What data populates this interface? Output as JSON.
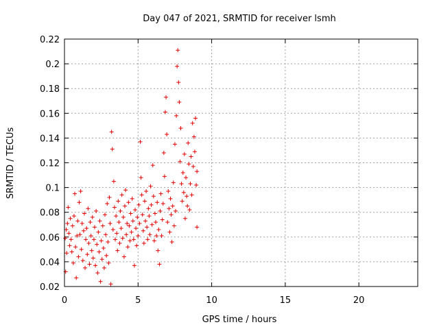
{
  "chart_data": {
    "type": "scatter",
    "title": "Day 047 of 2021, SRMTID for receiver lsmh",
    "xlabel": "GPS time / hours",
    "ylabel": "SRMTID / TECUs",
    "xlim": [
      0,
      24
    ],
    "ylim": [
      0.02,
      0.22
    ],
    "xticks": [
      0,
      5,
      10,
      15,
      20
    ],
    "xtick_labels": [
      "0",
      "5",
      "10",
      "15",
      "20"
    ],
    "yticks": [
      0.02,
      0.04,
      0.06,
      0.08,
      0.1,
      0.12,
      0.14,
      0.16,
      0.18,
      0.2,
      0.22
    ],
    "ytick_labels": [
      "0.02",
      "0.04",
      "0.06",
      "0.08",
      "0.1",
      "0.12",
      "0.14",
      "0.16",
      "0.18",
      "0.2",
      "0.22"
    ],
    "grid": true,
    "marker": "+",
    "color": "#e00000",
    "series": [
      {
        "name": "SRMTID",
        "points": [
          [
            0.05,
            0.059
          ],
          [
            0.08,
            0.032
          ],
          [
            0.12,
            0.066
          ],
          [
            0.15,
            0.047
          ],
          [
            0.2,
            0.071
          ],
          [
            0.25,
            0.084
          ],
          [
            0.3,
            0.063
          ],
          [
            0.35,
            0.053
          ],
          [
            0.4,
            0.075
          ],
          [
            0.45,
            0.058
          ],
          [
            0.5,
            0.048
          ],
          [
            0.55,
            0.069
          ],
          [
            0.6,
            0.039
          ],
          [
            0.65,
            0.077
          ],
          [
            0.7,
            0.095
          ],
          [
            0.75,
            0.052
          ],
          [
            0.8,
            0.027
          ],
          [
            0.85,
            0.061
          ],
          [
            0.9,
            0.073
          ],
          [
            0.95,
            0.044
          ],
          [
            1.0,
            0.088
          ],
          [
            1.05,
            0.062
          ],
          [
            1.1,
            0.097
          ],
          [
            1.15,
            0.05
          ],
          [
            1.2,
            0.071
          ],
          [
            1.25,
            0.041
          ],
          [
            1.3,
            0.065
          ],
          [
            1.35,
            0.079
          ],
          [
            1.4,
            0.035
          ],
          [
            1.45,
            0.058
          ],
          [
            1.5,
            0.067
          ],
          [
            1.55,
            0.046
          ],
          [
            1.6,
            0.083
          ],
          [
            1.65,
            0.055
          ],
          [
            1.7,
            0.038
          ],
          [
            1.75,
            0.072
          ],
          [
            1.8,
            0.061
          ],
          [
            1.85,
            0.049
          ],
          [
            1.9,
            0.076
          ],
          [
            1.95,
            0.043
          ],
          [
            2.0,
            0.058
          ],
          [
            2.05,
            0.068
          ],
          [
            2.1,
            0.037
          ],
          [
            2.15,
            0.081
          ],
          [
            2.2,
            0.054
          ],
          [
            2.25,
            0.031
          ],
          [
            2.3,
            0.064
          ],
          [
            2.35,
            0.048
          ],
          [
            2.4,
            0.073
          ],
          [
            2.45,
            0.024
          ],
          [
            2.5,
            0.057
          ],
          [
            2.55,
            0.042
          ],
          [
            2.6,
            0.069
          ],
          [
            2.65,
            0.051
          ],
          [
            2.7,
            0.035
          ],
          [
            2.75,
            0.078
          ],
          [
            2.8,
            0.062
          ],
          [
            2.85,
            0.045
          ],
          [
            2.9,
            0.087
          ],
          [
            2.95,
            0.056
          ],
          [
            3.0,
            0.039
          ],
          [
            3.05,
            0.092
          ],
          [
            3.1,
            0.071
          ],
          [
            3.15,
            0.022
          ],
          [
            3.2,
            0.145
          ],
          [
            3.25,
            0.131
          ],
          [
            3.3,
            0.066
          ],
          [
            3.35,
            0.105
          ],
          [
            3.4,
            0.084
          ],
          [
            3.45,
            0.058
          ],
          [
            3.5,
            0.077
          ],
          [
            3.55,
            0.063
          ],
          [
            3.6,
            0.049
          ],
          [
            3.65,
            0.089
          ],
          [
            3.7,
            0.072
          ],
          [
            3.75,
            0.055
          ],
          [
            3.8,
            0.081
          ],
          [
            3.85,
            0.067
          ],
          [
            3.9,
            0.094
          ],
          [
            3.95,
            0.059
          ],
          [
            4.0,
            0.076
          ],
          [
            4.05,
            0.044
          ],
          [
            4.1,
            0.085
          ],
          [
            4.15,
            0.098
          ],
          [
            4.2,
            0.062
          ],
          [
            4.25,
            0.071
          ],
          [
            4.3,
            0.052
          ],
          [
            4.35,
            0.088
          ],
          [
            4.4,
            0.069
          ],
          [
            4.45,
            0.057
          ],
          [
            4.5,
            0.079
          ],
          [
            4.55,
            0.064
          ],
          [
            4.6,
            0.091
          ],
          [
            4.65,
            0.073
          ],
          [
            4.7,
            0.058
          ],
          [
            4.75,
            0.037
          ],
          [
            4.8,
            0.082
          ],
          [
            4.85,
            0.067
          ],
          [
            4.9,
            0.053
          ],
          [
            4.95,
            0.076
          ],
          [
            5.0,
            0.061
          ],
          [
            5.05,
            0.086
          ],
          [
            5.1,
            0.071
          ],
          [
            5.15,
            0.137
          ],
          [
            5.2,
            0.108
          ],
          [
            5.25,
            0.094
          ],
          [
            5.3,
            0.078
          ],
          [
            5.35,
            0.065
          ],
          [
            5.4,
            0.055
          ],
          [
            5.45,
            0.089
          ],
          [
            5.5,
            0.073
          ],
          [
            5.55,
            0.097
          ],
          [
            5.6,
            0.068
          ],
          [
            5.65,
            0.058
          ],
          [
            5.7,
            0.083
          ],
          [
            5.75,
            0.077
          ],
          [
            5.8,
            0.062
          ],
          [
            5.85,
            0.101
          ],
          [
            5.9,
            0.086
          ],
          [
            5.95,
            0.07
          ],
          [
            6.0,
            0.118
          ],
          [
            6.05,
            0.093
          ],
          [
            6.1,
            0.057
          ],
          [
            6.15,
            0.079
          ],
          [
            6.2,
            0.072
          ],
          [
            6.25,
            0.061
          ],
          [
            6.3,
            0.088
          ],
          [
            6.35,
            0.049
          ],
          [
            6.4,
            0.066
          ],
          [
            6.45,
            0.038
          ],
          [
            6.5,
            0.081
          ],
          [
            6.55,
            0.095
          ],
          [
            6.6,
            0.061
          ],
          [
            6.65,
            0.074
          ],
          [
            6.7,
            0.087
          ],
          [
            6.75,
            0.128
          ],
          [
            6.8,
            0.109
          ],
          [
            6.85,
            0.161
          ],
          [
            6.9,
            0.173
          ],
          [
            6.95,
            0.143
          ],
          [
            7.0,
            0.072
          ],
          [
            7.05,
            0.097
          ],
          [
            7.1,
            0.083
          ],
          [
            7.15,
            0.064
          ],
          [
            7.2,
            0.091
          ],
          [
            7.25,
            0.078
          ],
          [
            7.3,
            0.056
          ],
          [
            7.35,
            0.085
          ],
          [
            7.4,
            0.104
          ],
          [
            7.45,
            0.069
          ],
          [
            7.5,
            0.135
          ],
          [
            7.55,
            0.081
          ],
          [
            7.6,
            0.158
          ],
          [
            7.65,
            0.198
          ],
          [
            7.7,
            0.211
          ],
          [
            7.75,
            0.185
          ],
          [
            7.8,
            0.169
          ],
          [
            7.85,
            0.121
          ],
          [
            7.9,
            0.148
          ],
          [
            7.95,
            0.103
          ],
          [
            8.0,
            0.089
          ],
          [
            8.05,
            0.112
          ],
          [
            8.1,
            0.096
          ],
          [
            8.15,
            0.127
          ],
          [
            8.2,
            0.075
          ],
          [
            8.25,
            0.108
          ],
          [
            8.3,
            0.093
          ],
          [
            8.35,
            0.085
          ],
          [
            8.4,
            0.136
          ],
          [
            8.45,
            0.119
          ],
          [
            8.5,
            0.082
          ],
          [
            8.55,
            0.103
          ],
          [
            8.6,
            0.125
          ],
          [
            8.65,
            0.094
          ],
          [
            8.7,
            0.152
          ],
          [
            8.75,
            0.117
          ],
          [
            8.8,
            0.141
          ],
          [
            8.85,
            0.129
          ],
          [
            8.9,
            0.156
          ],
          [
            8.95,
            0.102
          ],
          [
            9.0,
            0.068
          ],
          [
            9.0,
            0.113
          ]
        ]
      }
    ]
  }
}
